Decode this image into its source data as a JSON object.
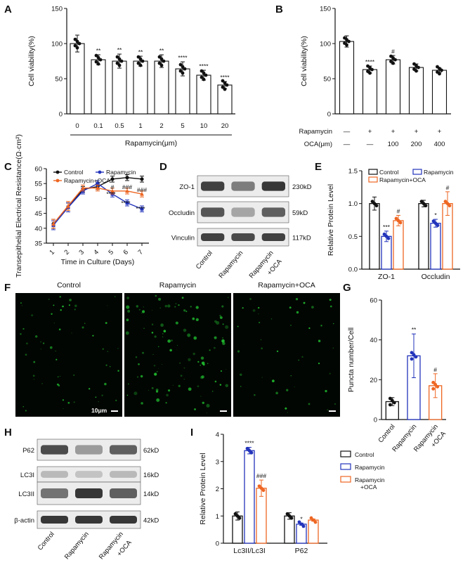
{
  "colors": {
    "control": "#111111",
    "rapamycin": "#2233bb",
    "oca": "#ee6622",
    "fluor": "#22cc33"
  },
  "panels": {
    "A": "A",
    "B": "B",
    "C": "C",
    "D": "D",
    "E": "E",
    "F": "F",
    "G": "G",
    "H": "H",
    "I": "I"
  },
  "chart_data": [
    {
      "id": "A",
      "type": "bar",
      "ylabel": "Cell viability(%)",
      "xlabel": "Rapamycin(μm)",
      "ylim": [
        0,
        150
      ],
      "yticks": [
        0,
        50,
        100,
        150
      ],
      "categories": [
        "0",
        "0.1",
        "0.5",
        "1",
        "2",
        "5",
        "10",
        "20"
      ],
      "values": [
        100,
        77,
        75,
        75,
        75,
        64,
        55,
        41
      ],
      "errors": [
        12,
        7,
        10,
        7,
        9,
        10,
        7,
        5
      ],
      "annotations": [
        "",
        "**",
        "**",
        "**",
        "**",
        "****",
        "****",
        "****"
      ]
    },
    {
      "id": "B",
      "type": "bar",
      "ylabel": "Cell viability(%)",
      "ylim": [
        0,
        150
      ],
      "yticks": [
        0,
        50,
        100,
        150
      ],
      "row_labels": [
        "Rapamycin",
        "OCA(μm)"
      ],
      "rapamycin_row": [
        "—",
        "+",
        "+",
        "+",
        "+"
      ],
      "oca_row": [
        "—",
        "—",
        "100",
        "200",
        "400"
      ],
      "values": [
        103,
        63,
        77,
        66,
        62
      ],
      "errors": [
        8,
        5,
        6,
        5,
        3
      ],
      "annotations": [
        "",
        "****",
        "#",
        "",
        ""
      ]
    },
    {
      "id": "C",
      "type": "line",
      "ylabel": "Transepithelial Electrical Resistance(Ω·cm²)",
      "xlabel": "Time in Culture (Days)",
      "ylim": [
        35,
        60
      ],
      "yticks": [
        35,
        40,
        45,
        50,
        55,
        60
      ],
      "x": [
        1,
        2,
        3,
        4,
        5,
        6,
        7
      ],
      "series": [
        {
          "name": "Control",
          "values": [
            41.5,
            47,
            53,
            54,
            56.5,
            57,
            56.5
          ],
          "err": [
            1.5,
            1.5,
            1,
            1,
            1,
            1,
            1
          ]
        },
        {
          "name": "Rapamycin",
          "values": [
            41,
            47,
            52.5,
            55,
            51.5,
            48.5,
            46.5
          ],
          "err": [
            1.5,
            1.5,
            1,
            1,
            1,
            1,
            1
          ]
        },
        {
          "name": "Rapamycin+OCA",
          "values": [
            41.5,
            47.5,
            53.5,
            53.5,
            52.5,
            52.5,
            51.5
          ],
          "err": [
            1.5,
            1.5,
            1,
            1,
            1,
            1,
            1
          ]
        }
      ],
      "annotations": [
        "****",
        "****",
        "****",
        "#",
        "###",
        "###"
      ]
    },
    {
      "id": "D",
      "type": "blot",
      "bands": [
        "ZO-1",
        "Occludin",
        "Vinculin"
      ],
      "sizes": [
        "230kD",
        "59kD",
        "117kD"
      ],
      "lanes": [
        "Control",
        "Rapamycin",
        "Rapamycin +OCA"
      ],
      "intensity": [
        [
          0.85,
          0.55,
          0.9
        ],
        [
          0.75,
          0.35,
          0.7
        ],
        [
          0.85,
          0.8,
          0.85
        ]
      ]
    },
    {
      "id": "E",
      "type": "bar",
      "ylabel": "Relative Protein Level",
      "ylim": [
        0,
        1.5
      ],
      "yticks": [
        0.0,
        0.5,
        1.0,
        1.5
      ],
      "categories": [
        "ZO-1",
        "Occludin"
      ],
      "series": [
        {
          "name": "Control",
          "values": [
            1.0,
            1.0
          ],
          "err": [
            0.1,
            0.05
          ]
        },
        {
          "name": "Rapamycin",
          "values": [
            0.5,
            0.7
          ],
          "err": [
            0.08,
            0.06
          ]
        },
        {
          "name": "Rapamycin+OCA",
          "values": [
            0.74,
            1.0
          ],
          "err": [
            0.08,
            0.18
          ]
        }
      ],
      "annotations": [
        "***",
        "#",
        "*",
        "#"
      ]
    },
    {
      "id": "F",
      "type": "image",
      "panels": [
        "Control",
        "Rapamycin",
        "Rapamycin+OCA"
      ],
      "scale_bar": "10μm"
    },
    {
      "id": "G",
      "type": "bar",
      "ylabel": "Puncta number/Cell",
      "ylim": [
        0,
        60
      ],
      "yticks": [
        0,
        20,
        40,
        60
      ],
      "categories": [
        "Control",
        "Rapamycin",
        "Rapamycin +OCA"
      ],
      "values": [
        9,
        32,
        17
      ],
      "errors": [
        2,
        11,
        6
      ],
      "annotations": [
        "",
        "**",
        "#"
      ]
    },
    {
      "id": "H",
      "type": "blot",
      "bands": [
        "P62",
        "LC3I",
        "LC3II",
        "β-actin"
      ],
      "sizes": [
        "62kD",
        "16kD",
        "14kD",
        "42kD"
      ],
      "lanes": [
        "Control",
        "Rapamycin",
        "Rapamycin +OCA"
      ],
      "intensity": [
        [
          0.8,
          0.4,
          0.7
        ],
        [
          0.25,
          0.2,
          0.25
        ],
        [
          0.6,
          0.9,
          0.7
        ],
        [
          0.9,
          0.9,
          0.9
        ]
      ]
    },
    {
      "id": "I",
      "type": "bar",
      "ylabel": "Relative Protein Level",
      "ylim": [
        0,
        4
      ],
      "yticks": [
        0,
        1,
        2,
        3,
        4
      ],
      "categories": [
        "Lc3II/Lc3I",
        "P62"
      ],
      "series": [
        {
          "name": "Control",
          "values": [
            1.0,
            1.0
          ],
          "err": [
            0.15,
            0.12
          ]
        },
        {
          "name": "Rapamycin",
          "values": [
            3.4,
            0.7
          ],
          "err": [
            0.12,
            0.04
          ]
        },
        {
          "name": "Rapamycin +OCA",
          "values": [
            2.02,
            0.85
          ],
          "err": [
            0.3,
            0.04
          ]
        }
      ],
      "annotations": [
        "****",
        "###",
        "*",
        ""
      ]
    }
  ]
}
